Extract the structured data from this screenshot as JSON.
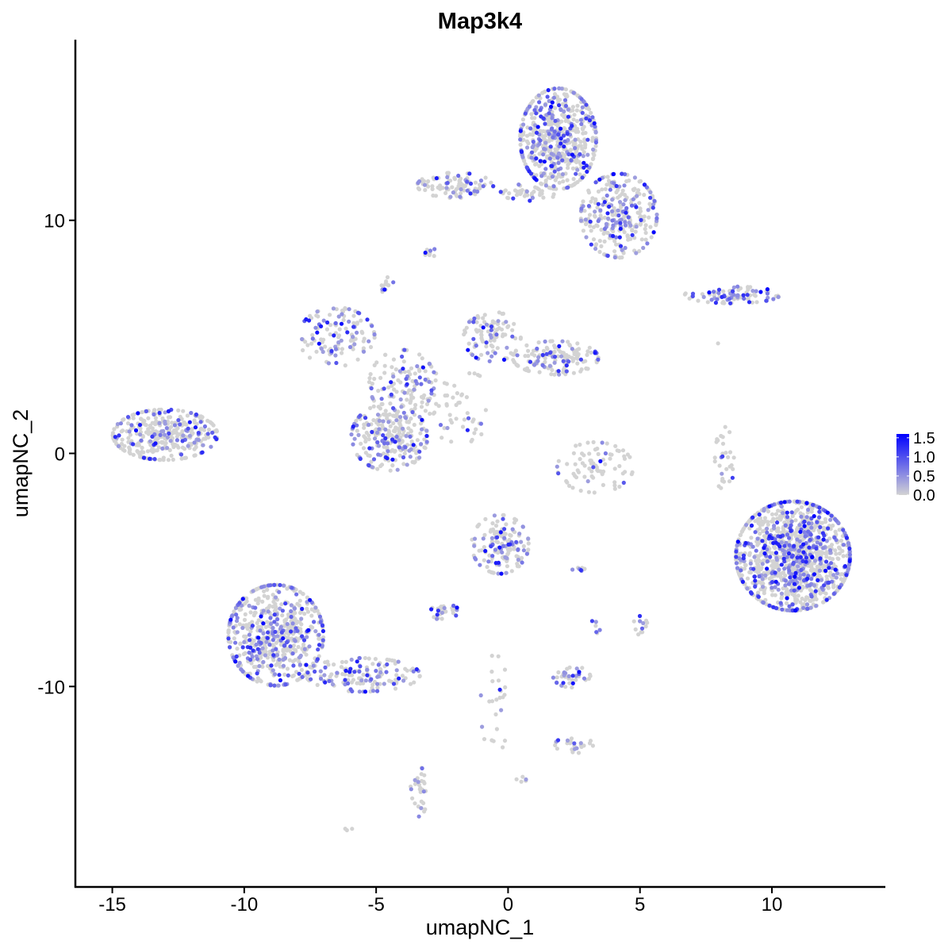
{
  "chart_data": {
    "type": "scatter",
    "title": "Map3k4",
    "xlabel": "umapNC_1",
    "ylabel": "umapNC_2",
    "xlim": [
      -16.4,
      14.3
    ],
    "ylim": [
      -18.6,
      17.75
    ],
    "xticks": [
      -15,
      -10,
      -5,
      0,
      5,
      10
    ],
    "xtick_labels": [
      "-15",
      "-10",
      "-5",
      "0",
      "5",
      "10"
    ],
    "yticks": [
      -10,
      0,
      10
    ],
    "ytick_labels": [
      "-10",
      "0",
      "10"
    ],
    "grid": false,
    "legend": {
      "placement": "right",
      "type": "colorbar",
      "range": [
        0,
        1.6
      ],
      "ticks": [
        0.0,
        0.5,
        1.0,
        1.5
      ],
      "tick_labels": [
        "0.0",
        "0.5",
        "1.0",
        "1.5"
      ],
      "low_color": "#D3D3D3",
      "high_color": "#0000FF"
    },
    "clusters": [
      {
        "center": [
          -13,
          0.8
        ],
        "spread": [
          1.1,
          0.6
        ],
        "count": 350,
        "expressing_fraction": 0.25
      },
      {
        "center": [
          1.9,
          13.5
        ],
        "spread": [
          0.8,
          1.2
        ],
        "count": 600,
        "expressing_fraction": 0.3
      },
      {
        "center": [
          4.2,
          10.2
        ],
        "spread": [
          0.8,
          1.0
        ],
        "count": 300,
        "expressing_fraction": 0.3
      },
      {
        "center": [
          -2,
          11.5
        ],
        "spread": [
          0.8,
          0.3
        ],
        "count": 100,
        "expressing_fraction": 0.2
      },
      {
        "center": [
          0.8,
          11.2
        ],
        "spread": [
          0.6,
          0.2
        ],
        "count": 40,
        "expressing_fraction": 0.1
      },
      {
        "center": [
          -3,
          8.6
        ],
        "spread": [
          0.15,
          0.15
        ],
        "count": 10,
        "expressing_fraction": 0.4
      },
      {
        "center": [
          -4.6,
          7.2
        ],
        "spread": [
          0.15,
          0.2
        ],
        "count": 12,
        "expressing_fraction": 0.4
      },
      {
        "center": [
          8.5,
          6.8
        ],
        "spread": [
          1.0,
          0.2
        ],
        "count": 90,
        "expressing_fraction": 0.45
      },
      {
        "center": [
          -6.5,
          5
        ],
        "spread": [
          0.8,
          0.7
        ],
        "count": 120,
        "expressing_fraction": 0.35
      },
      {
        "center": [
          -4,
          3
        ],
        "spread": [
          0.7,
          0.8
        ],
        "count": 120,
        "expressing_fraction": 0.3
      },
      {
        "center": [
          -4.5,
          0.7
        ],
        "spread": [
          0.8,
          0.8
        ],
        "count": 250,
        "expressing_fraction": 0.3
      },
      {
        "center": [
          -0.6,
          5
        ],
        "spread": [
          0.6,
          0.6
        ],
        "count": 100,
        "expressing_fraction": 0.2
      },
      {
        "center": [
          1.8,
          4.1
        ],
        "spread": [
          0.9,
          0.4
        ],
        "count": 150,
        "expressing_fraction": 0.25
      },
      {
        "center": [
          -2,
          2.5
        ],
        "spread": [
          0.8,
          0.6
        ],
        "count": 40,
        "expressing_fraction": 0.2
      },
      {
        "center": [
          -1.8,
          1
        ],
        "spread": [
          0.5,
          0.3
        ],
        "count": 20,
        "expressing_fraction": 0.1
      },
      {
        "center": [
          3.3,
          -0.6
        ],
        "spread": [
          0.8,
          0.6
        ],
        "count": 80,
        "expressing_fraction": 0.1
      },
      {
        "center": [
          8.2,
          -0.3
        ],
        "spread": [
          0.2,
          0.8
        ],
        "count": 30,
        "expressing_fraction": 0.2
      },
      {
        "center": [
          10.8,
          -4.4
        ],
        "spread": [
          1.2,
          1.3
        ],
        "count": 1200,
        "expressing_fraction": 0.3
      },
      {
        "center": [
          -0.3,
          -3.9
        ],
        "spread": [
          0.6,
          0.7
        ],
        "count": 150,
        "expressing_fraction": 0.35
      },
      {
        "center": [
          -2.4,
          -6.8
        ],
        "spread": [
          0.3,
          0.2
        ],
        "count": 30,
        "expressing_fraction": 0.3
      },
      {
        "center": [
          2.8,
          -5
        ],
        "spread": [
          0.2,
          0.1
        ],
        "count": 8,
        "expressing_fraction": 0.3
      },
      {
        "center": [
          3.3,
          -7.5
        ],
        "spread": [
          0.1,
          0.3
        ],
        "count": 6,
        "expressing_fraction": 0.3
      },
      {
        "center": [
          5,
          -7.3
        ],
        "spread": [
          0.15,
          0.3
        ],
        "count": 12,
        "expressing_fraction": 0.4
      },
      {
        "center": [
          2.4,
          -9.5
        ],
        "spread": [
          0.4,
          0.3
        ],
        "count": 40,
        "expressing_fraction": 0.4
      },
      {
        "center": [
          -8.8,
          -7.8
        ],
        "spread": [
          1.0,
          1.2
        ],
        "count": 600,
        "expressing_fraction": 0.35
      },
      {
        "center": [
          -5.5,
          -9.5
        ],
        "spread": [
          1.2,
          0.4
        ],
        "count": 150,
        "expressing_fraction": 0.3
      },
      {
        "center": [
          -3.4,
          -14.5
        ],
        "spread": [
          0.2,
          0.6
        ],
        "count": 30,
        "expressing_fraction": 0.2
      },
      {
        "center": [
          -0.5,
          -10.8
        ],
        "spread": [
          0.3,
          1.2
        ],
        "count": 25,
        "expressing_fraction": 0.2
      },
      {
        "center": [
          2.5,
          -12.5
        ],
        "spread": [
          0.4,
          0.2
        ],
        "count": 25,
        "expressing_fraction": 0.2
      },
      {
        "center": [
          0.5,
          -14
        ],
        "spread": [
          0.1,
          0.1
        ],
        "count": 5,
        "expressing_fraction": 0.6
      },
      {
        "center": [
          -6,
          -16.1
        ],
        "spread": [
          0.1,
          0.1
        ],
        "count": 3,
        "expressing_fraction": 0.3
      },
      {
        "center": [
          8,
          4.8
        ],
        "spread": [
          0.05,
          0.05
        ],
        "count": 1,
        "expressing_fraction": 0
      }
    ]
  }
}
